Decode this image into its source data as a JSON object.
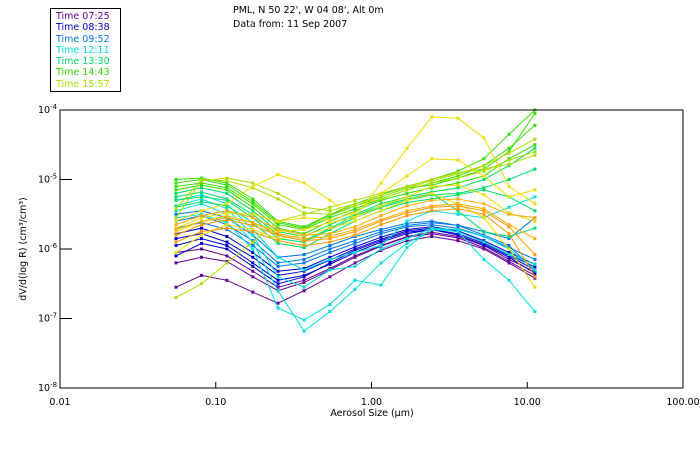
{
  "header": {
    "location": "PML, N 50 22', W 04 08', Alt 0m",
    "date_line": "Data from: 11 Sep 2007"
  },
  "chart_data": {
    "type": "line",
    "title": "PML, N 50 22', W 04 08', Alt 0m",
    "subtitle": "Data from: 11 Sep 2007",
    "xlabel": "Aerosol Size (µm)",
    "ylabel": "dV/d(log R) (cm³/cm³)",
    "xscale": "log",
    "yscale": "log",
    "xlim": [
      0.01,
      100
    ],
    "ylim": [
      1e-08,
      0.0001
    ],
    "x_ticks": [
      {
        "value": 0.01,
        "label": "0.01"
      },
      {
        "value": 0.1,
        "label": "0.10"
      },
      {
        "value": 1,
        "label": "1.00"
      },
      {
        "value": 10,
        "label": "10.00"
      },
      {
        "value": 100,
        "label": "100.00"
      }
    ],
    "y_ticks": [
      {
        "exp": -4,
        "label": "10",
        "sup": "-4"
      },
      {
        "exp": -5,
        "label": "10",
        "sup": "-5"
      },
      {
        "exp": -6,
        "label": "10",
        "sup": "-6"
      },
      {
        "exp": -7,
        "label": "10",
        "sup": "-7"
      },
      {
        "exp": -8,
        "label": "10",
        "sup": "-8"
      }
    ],
    "grid": false,
    "legend_position": "top-left-outside",
    "legend": [
      {
        "label": "Time 07:25",
        "color": "#660099"
      },
      {
        "label": "Time 08:38",
        "color": "#0000cc"
      },
      {
        "label": "Time 09:52",
        "color": "#0077ee"
      },
      {
        "label": "Time 12:11",
        "color": "#00dddd"
      },
      {
        "label": "Time 13:30",
        "color": "#00dd66"
      },
      {
        "label": "Time 14:43",
        "color": "#33dd00"
      },
      {
        "label": "Time 15:57",
        "color": "#aadd00"
      }
    ],
    "x": [
      0.0556,
      0.081,
      0.118,
      0.173,
      0.251,
      0.369,
      0.541,
      0.783,
      1.15,
      1.69,
      2.44,
      3.59,
      5.27,
      7.64,
      11.2
    ],
    "y_units": "log10 of dV/d(log R)",
    "series": [
      {
        "group": "07:25",
        "color": "#660099",
        "log_values": [
          -6.55,
          -6.38,
          -6.45,
          -6.62,
          -6.78,
          -6.6,
          -6.4,
          -6.2,
          -6.02,
          -5.88,
          -5.82,
          -5.88,
          -6.0,
          -6.2,
          -6.42
        ]
      },
      {
        "group": "07:25",
        "color": "#660099",
        "log_values": [
          -6.2,
          -6.12,
          -6.18,
          -6.4,
          -6.6,
          -6.48,
          -6.3,
          -6.12,
          -5.96,
          -5.83,
          -5.78,
          -5.84,
          -5.98,
          -6.18,
          -6.38
        ]
      },
      {
        "group": "07:25",
        "color": "#660099",
        "log_values": [
          -6.05,
          -6.0,
          -6.1,
          -6.32,
          -6.55,
          -6.45,
          -6.28,
          -6.1,
          -5.95,
          -5.82,
          -5.76,
          -5.82,
          -5.95,
          -6.15,
          -6.33
        ]
      },
      {
        "group": "08:38",
        "color": "#0000cc",
        "log_values": [
          -5.95,
          -5.85,
          -5.95,
          -6.2,
          -6.45,
          -6.38,
          -6.22,
          -6.05,
          -5.9,
          -5.78,
          -5.72,
          -5.78,
          -5.92,
          -6.1,
          -6.3
        ]
      },
      {
        "group": "08:38",
        "color": "#0000cc",
        "log_values": [
          -5.85,
          -5.78,
          -5.9,
          -6.12,
          -6.38,
          -6.32,
          -6.16,
          -6.0,
          -5.86,
          -5.74,
          -5.7,
          -5.75,
          -5.9,
          -6.08,
          -6.26
        ]
      },
      {
        "group": "08:38",
        "color": "#0000cc",
        "log_values": [
          -6.1,
          -5.92,
          -6.0,
          -6.25,
          -6.5,
          -6.4,
          -6.2,
          -6.02,
          -5.88,
          -5.76,
          -5.72,
          -5.8,
          -5.94,
          -6.12,
          -6.35
        ]
      },
      {
        "group": "08:38",
        "color": "#0000cc",
        "log_values": [
          -5.78,
          -5.7,
          -5.82,
          -6.05,
          -6.32,
          -6.28,
          -6.12,
          -5.97,
          -5.83,
          -5.72,
          -5.68,
          -5.74,
          -5.88,
          -6.05,
          -6.22
        ]
      },
      {
        "group": "09:52",
        "color": "#0077ee",
        "log_values": [
          -5.7,
          -5.62,
          -5.72,
          -5.95,
          -6.25,
          -6.2,
          -6.05,
          -5.92,
          -5.78,
          -5.68,
          -5.65,
          -5.7,
          -5.82,
          -5.98,
          -6.15
        ]
      },
      {
        "group": "09:52",
        "color": "#0077ee",
        "log_values": [
          -5.6,
          -5.52,
          -5.65,
          -5.88,
          -6.2,
          -6.15,
          -6.0,
          -5.88,
          -5.75,
          -5.66,
          -5.62,
          -5.66,
          -5.75,
          -5.85,
          -5.55
        ]
      },
      {
        "group": "09:52",
        "color": "#0077ee",
        "log_values": [
          -5.5,
          -5.45,
          -5.55,
          -5.8,
          -6.12,
          -6.08,
          -5.95,
          -5.82,
          -5.72,
          -5.63,
          -5.6,
          -5.66,
          -5.8,
          -5.95,
          -6.32
        ]
      },
      {
        "group": "12:11",
        "color": "#00dddd",
        "log_values": [
          -5.45,
          -5.35,
          -5.5,
          -5.9,
          -6.6,
          -7.18,
          -6.9,
          -6.58,
          -6.2,
          -5.92,
          -5.72,
          -5.75,
          -5.9,
          -6.08,
          -6.22
        ]
      },
      {
        "group": "12:11",
        "color": "#00dddd",
        "log_values": [
          -5.55,
          -5.5,
          -5.62,
          -6.0,
          -6.85,
          -7.02,
          -6.8,
          -6.45,
          -6.52,
          -5.98,
          -5.7,
          -5.72,
          -5.82,
          -6.0,
          -6.3
        ]
      },
      {
        "group": "12:11",
        "color": "#00dddd",
        "log_values": [
          -5.38,
          -5.28,
          -5.42,
          -5.8,
          -6.4,
          -6.55,
          -6.3,
          -6.25,
          -6.0,
          -5.85,
          -5.7,
          -5.75,
          -6.15,
          -6.45,
          -6.9
        ]
      },
      {
        "group": "12:11",
        "color": "#00dddd",
        "log_values": [
          -5.3,
          -5.22,
          -5.35,
          -5.72,
          -6.12,
          -6.3,
          -6.15,
          -6.05,
          -5.95,
          -5.6,
          -5.45,
          -5.5,
          -5.55,
          -5.4,
          -5.25
        ]
      },
      {
        "group": "13:30",
        "color": "#00dd66",
        "log_values": [
          -5.3,
          -5.25,
          -5.3,
          -5.55,
          -5.85,
          -5.9,
          -5.72,
          -5.55,
          -5.4,
          -5.3,
          -5.22,
          -5.2,
          -5.12,
          -5.0,
          -4.85
        ]
      },
      {
        "group": "13:30",
        "color": "#00dd66",
        "log_values": [
          -5.2,
          -5.12,
          -5.2,
          -5.45,
          -5.75,
          -5.82,
          -5.65,
          -5.5,
          -5.35,
          -5.25,
          -5.18,
          -5.12,
          -5.0,
          -4.8,
          -4.55
        ]
      },
      {
        "group": "13:30",
        "color": "#00dd66",
        "log_values": [
          -5.4,
          -5.32,
          -5.38,
          -5.62,
          -5.92,
          -5.98,
          -5.78,
          -5.6,
          -5.45,
          -5.33,
          -5.28,
          -5.22,
          -5.15,
          -5.25,
          -5.45
        ]
      },
      {
        "group": "13:30",
        "color": "#00dd66",
        "log_values": [
          -5.25,
          -5.18,
          -5.28,
          -5.5,
          -5.8,
          -5.88,
          -5.7,
          -5.52,
          -5.38,
          -5.28,
          -5.2,
          -5.45,
          -5.75,
          -5.82,
          -5.7
        ]
      },
      {
        "group": "14:43",
        "color": "#33dd00",
        "log_values": [
          -5.1,
          -5.05,
          -5.12,
          -5.35,
          -5.65,
          -5.72,
          -5.55,
          -5.42,
          -5.28,
          -5.15,
          -5.05,
          -4.95,
          -4.8,
          -4.55,
          -4.22
        ]
      },
      {
        "group": "14:43",
        "color": "#33dd00",
        "log_values": [
          -5.0,
          -4.98,
          -5.05,
          -5.28,
          -5.6,
          -5.68,
          -5.5,
          -5.35,
          -5.22,
          -5.1,
          -5.0,
          -4.88,
          -4.7,
          -4.35,
          -3.98
        ]
      },
      {
        "group": "14:43",
        "color": "#33dd00",
        "log_values": [
          -5.15,
          -5.08,
          -5.15,
          -5.4,
          -5.7,
          -5.78,
          -5.6,
          -5.45,
          -5.3,
          -5.2,
          -5.12,
          -5.05,
          -4.95,
          -4.7,
          -4.5
        ]
      },
      {
        "group": "14:43",
        "color": "#33dd00",
        "log_values": [
          -5.05,
          -5.0,
          -5.08,
          -5.32,
          -5.62,
          -5.7,
          -5.52,
          -5.38,
          -5.25,
          -5.12,
          -5.08,
          -4.98,
          -4.85,
          -4.6,
          -4.05
        ]
      },
      {
        "group": "15:57",
        "color": "#aadd00",
        "log_values": [
          -5.55,
          -5.02,
          -4.98,
          -5.05,
          -5.2,
          -5.4,
          -5.45,
          -5.35,
          -5.25,
          -5.12,
          -5.02,
          -4.92,
          -4.8,
          -4.62,
          -4.42
        ]
      },
      {
        "group": "15:57",
        "color": "#aadd00",
        "log_values": [
          -5.42,
          -5.0,
          -5.02,
          -5.12,
          -5.28,
          -5.48,
          -5.5,
          -5.38,
          -5.28,
          -5.15,
          -5.05,
          -4.98,
          -4.88,
          -4.72,
          -4.6
        ]
      },
      {
        "group": "15:57",
        "color": "#aadd00",
        "log_values": [
          -6.7,
          -6.5,
          -6.2,
          -5.9,
          -5.6,
          -5.5,
          -5.4,
          -5.3,
          -5.2,
          -5.1,
          -5.0,
          -4.9,
          -4.85,
          -4.78,
          -4.65
        ]
      },
      {
        "group": "later",
        "color": "#eedd00",
        "log_values": [
          -5.6,
          -5.45,
          -5.35,
          -5.1,
          -4.93,
          -5.05,
          -5.3,
          -5.55,
          -5.05,
          -4.55,
          -4.1,
          -4.12,
          -4.4,
          -5.1,
          -5.35
        ]
      },
      {
        "group": "later",
        "color": "#eedd00",
        "log_values": [
          -5.7,
          -5.55,
          -5.48,
          -5.5,
          -5.6,
          -5.55,
          -5.58,
          -5.48,
          -5.2,
          -4.95,
          -4.7,
          -4.72,
          -4.95,
          -5.25,
          -5.15
        ]
      },
      {
        "group": "later",
        "color": "#eedd00",
        "log_values": [
          -5.75,
          -5.6,
          -5.52,
          -5.62,
          -5.75,
          -5.72,
          -5.62,
          -5.55,
          -5.38,
          -5.25,
          -5.1,
          -5.08,
          -5.22,
          -5.48,
          -5.6
        ]
      },
      {
        "group": "later",
        "color": "#eedd00",
        "log_values": [
          -6.05,
          -5.8,
          -5.65,
          -5.72,
          -5.85,
          -5.8,
          -5.7,
          -5.6,
          -5.45,
          -5.3,
          -5.2,
          -5.35,
          -5.55,
          -6.0,
          -6.55
        ]
      },
      {
        "group": "later",
        "color": "#ffaa00",
        "log_values": [
          -5.65,
          -5.52,
          -5.45,
          -5.55,
          -5.72,
          -5.8,
          -5.78,
          -5.68,
          -5.52,
          -5.38,
          -5.3,
          -5.28,
          -5.35,
          -5.5,
          -5.55
        ]
      },
      {
        "group": "later",
        "color": "#ffaa00",
        "log_values": [
          -5.72,
          -5.6,
          -5.55,
          -5.62,
          -5.78,
          -5.85,
          -5.82,
          -5.72,
          -5.58,
          -5.45,
          -5.38,
          -5.35,
          -5.42,
          -5.65,
          -5.85
        ]
      },
      {
        "group": "later",
        "color": "#ff9900",
        "log_values": [
          -5.8,
          -5.65,
          -5.58,
          -5.66,
          -5.8,
          -5.88,
          -5.85,
          -5.75,
          -5.6,
          -5.48,
          -5.4,
          -5.38,
          -5.45,
          -5.68,
          -6.08
        ]
      },
      {
        "group": "later",
        "color": "#ff9900",
        "log_values": [
          -5.9,
          -5.75,
          -5.7,
          -5.75,
          -5.88,
          -5.95,
          -5.9,
          -5.8,
          -5.65,
          -5.52,
          -5.45,
          -5.42,
          -5.5,
          -5.78,
          -6.4
        ]
      }
    ]
  }
}
